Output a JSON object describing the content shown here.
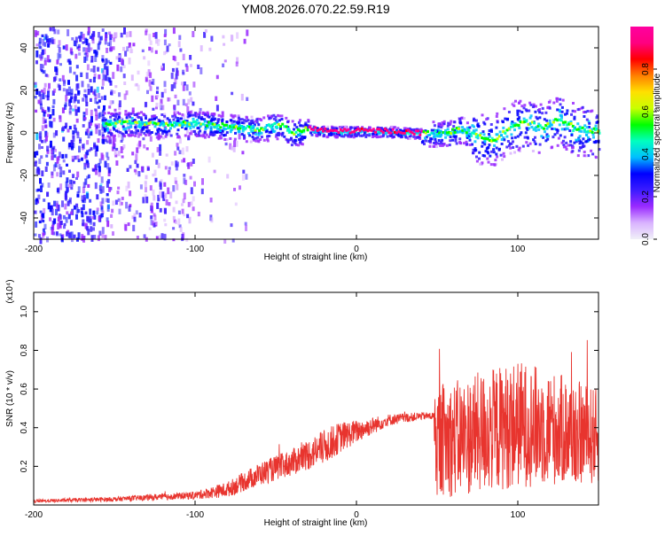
{
  "title": "YM08.2026.070.22.59.R19",
  "colors": {
    "trace": "#e8342e",
    "colorbar": [
      "#f0f0f8",
      "#d9b3ff",
      "#9a2bff",
      "#3b1bff",
      "#0000ff",
      "#00bfff",
      "#00ffbf",
      "#00ff00",
      "#c8ff00",
      "#ffe000",
      "#ff8000",
      "#ff0000",
      "#ff0080",
      "#ff00a0"
    ]
  },
  "chart_data": [
    {
      "type": "heatmap",
      "title": "YM08.2026.070.22.59.R19",
      "xlabel": "Height of straight line (km)",
      "ylabel": "Frequency (Hz)",
      "xlim": [
        -200,
        150
      ],
      "ylim": [
        -50,
        50
      ],
      "xticks": [
        {
          "v": -200,
          "label": "-200"
        },
        {
          "v": -100,
          "label": "-100"
        },
        {
          "v": 0,
          "label": "0"
        },
        {
          "v": 100,
          "label": "100"
        }
      ],
      "yticks": [
        {
          "v": 40,
          "label": "40"
        },
        {
          "v": 20,
          "label": "20"
        },
        {
          "v": 0,
          "label": "0"
        },
        {
          "v": -20,
          "label": "-20"
        },
        {
          "v": -40,
          "label": "-40"
        }
      ],
      "colorbar": {
        "label": "Normalized spectral amplitude",
        "range": [
          0,
          1
        ],
        "ticks": [
          {
            "v": 0.0,
            "label": "0.0"
          },
          {
            "v": 0.2,
            "label": "0.2"
          },
          {
            "v": 0.4,
            "label": "0.4"
          },
          {
            "v": 0.6,
            "label": "0.6"
          },
          {
            "v": 0.8,
            "label": "0.8"
          }
        ]
      },
      "ridge_freq_hz": [
        [
          -157,
          4
        ],
        [
          -140,
          5
        ],
        [
          -120,
          4
        ],
        [
          -100,
          5
        ],
        [
          -80,
          3
        ],
        [
          -60,
          2
        ],
        [
          -48,
          4
        ],
        [
          -40,
          0
        ],
        [
          -30,
          2
        ],
        [
          -20,
          1
        ],
        [
          -10,
          1
        ],
        [
          0,
          1
        ],
        [
          20,
          1
        ],
        [
          40,
          0
        ],
        [
          55,
          0
        ],
        [
          65,
          2
        ],
        [
          75,
          -2
        ],
        [
          85,
          -3
        ],
        [
          95,
          3
        ],
        [
          105,
          5
        ],
        [
          115,
          2
        ],
        [
          125,
          7
        ],
        [
          135,
          2
        ],
        [
          148,
          1
        ]
      ]
    },
    {
      "type": "line",
      "xlabel": "Height of straight line (km)",
      "ylabel": "SNR (10 * v/v)",
      "scale_label": "(x10⁴)",
      "xlim": [
        -200,
        150
      ],
      "ylim": [
        0,
        1.1
      ],
      "xticks": [
        {
          "v": -200,
          "label": "-200"
        },
        {
          "v": -100,
          "label": "-100"
        },
        {
          "v": 0,
          "label": "0"
        },
        {
          "v": 100,
          "label": "100"
        }
      ],
      "yticks": [
        {
          "v": 0.2,
          "label": "0.2"
        },
        {
          "v": 0.4,
          "label": "0.4"
        },
        {
          "v": 0.6,
          "label": "0.6"
        },
        {
          "v": 0.8,
          "label": "0.8"
        },
        {
          "v": 1.0,
          "label": "1.0"
        }
      ],
      "envelope": {
        "x": [
          -200,
          -150,
          -100,
          -80,
          -60,
          -40,
          -20,
          -10,
          0,
          20,
          40,
          48,
          49,
          60,
          80,
          100,
          120,
          150
        ],
        "mean": [
          0.02,
          0.03,
          0.05,
          0.08,
          0.16,
          0.22,
          0.3,
          0.35,
          0.38,
          0.44,
          0.46,
          0.46,
          0.33,
          0.34,
          0.38,
          0.42,
          0.4,
          0.35
        ],
        "noise": [
          0.008,
          0.012,
          0.02,
          0.04,
          0.06,
          0.07,
          0.09,
          0.08,
          0.06,
          0.03,
          0.02,
          0.02,
          0.28,
          0.3,
          0.32,
          0.33,
          0.3,
          0.25
        ]
      }
    }
  ]
}
